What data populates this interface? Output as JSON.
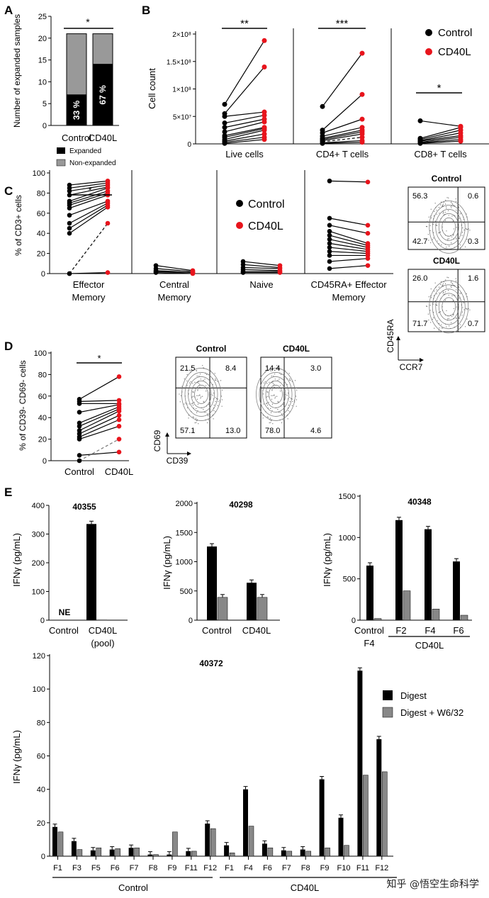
{
  "colors": {
    "control": "#000000",
    "cd40l": "#e8141c",
    "expanded": "#000000",
    "non_expanded": "#999999",
    "digest": "#000000",
    "digest_w632": "#888888"
  },
  "watermark": "知乎 @悟空生命科学",
  "panels": {
    "A": "A",
    "B": "B",
    "C": "C",
    "D": "D",
    "E": "E"
  },
  "chart_data": [
    {
      "id": "A",
      "type": "bar",
      "categories": [
        "Control",
        "CD40L"
      ],
      "series": [
        {
          "name": "Expanded",
          "values": [
            7,
            14
          ],
          "labels": [
            "33 %",
            "67 %"
          ]
        },
        {
          "name": "Non-expanded",
          "values": [
            14,
            7
          ]
        }
      ],
      "ylabel": "Number of expanded samples",
      "yticks": [
        0,
        5,
        10,
        15,
        20,
        25
      ],
      "ylim": [
        0,
        25
      ],
      "significance": "*"
    },
    {
      "id": "B",
      "type": "scatter",
      "groups": [
        "Live cells",
        "CD4+ T cells",
        "CD8+ T cells"
      ],
      "ylabel": "Cell count",
      "ytick_labels": [
        "0",
        "5×10⁷",
        "1×10⁸",
        "1.5×10⁸",
        "2×10⁸"
      ],
      "ylim": [
        0,
        200000000
      ],
      "legend": [
        "Control",
        "CD40L"
      ],
      "significance": [
        "**",
        "***",
        "*"
      ],
      "pairs": [
        [
          [
            72000000,
            188000000
          ],
          [
            55000000,
            140000000
          ],
          [
            50000000,
            58000000
          ],
          [
            38000000,
            52000000
          ],
          [
            30000000,
            45000000
          ],
          [
            22000000,
            40000000
          ],
          [
            15000000,
            30000000
          ],
          [
            12000000,
            28000000
          ],
          [
            8000000,
            25000000
          ],
          [
            5000000,
            18000000
          ],
          [
            3000000,
            12000000
          ],
          [
            1000000,
            8000000
          ]
        ],
        [
          [
            68000000,
            165000000
          ],
          [
            25000000,
            90000000
          ],
          [
            20000000,
            45000000
          ],
          [
            14000000,
            30000000
          ],
          [
            10000000,
            25000000
          ],
          [
            8000000,
            22000000
          ],
          [
            6000000,
            18000000
          ],
          [
            4000000,
            12000000
          ],
          [
            2000000,
            6000000
          ],
          [
            1000000,
            3000000
          ]
        ],
        [
          [
            42000000,
            32000000
          ],
          [
            10000000,
            30000000
          ],
          [
            8000000,
            25000000
          ],
          [
            6000000,
            20000000
          ],
          [
            5000000,
            15000000
          ],
          [
            3000000,
            12000000
          ],
          [
            2000000,
            8000000
          ],
          [
            1000000,
            5000000
          ]
        ]
      ]
    },
    {
      "id": "C",
      "type": "scatter",
      "groups": [
        "Effector Memory",
        "Central Memory",
        "Naive",
        "CD45RA+ Effector Memory"
      ],
      "ylabel": "% of CD3+ cells",
      "yticks": [
        0,
        20,
        40,
        60,
        80,
        100
      ],
      "ylim": [
        0,
        100
      ],
      "legend": [
        "Control",
        "CD40L"
      ],
      "significance": [
        "*",
        "",
        "",
        ""
      ],
      "pairs": [
        [
          [
            88,
            92
          ],
          [
            85,
            90
          ],
          [
            82,
            88
          ],
          [
            78,
            86
          ],
          [
            72,
            85
          ],
          [
            70,
            82
          ],
          [
            68,
            80
          ],
          [
            65,
            78
          ],
          [
            58,
            72
          ],
          [
            50,
            70
          ],
          [
            45,
            68
          ],
          [
            40,
            66
          ],
          [
            0,
            50
          ],
          [
            0,
            1
          ]
        ],
        [
          [
            8,
            3
          ],
          [
            5,
            2
          ],
          [
            3,
            1
          ],
          [
            2,
            1
          ],
          [
            1,
            0
          ]
        ],
        [
          [
            12,
            8
          ],
          [
            9,
            6
          ],
          [
            6,
            5
          ],
          [
            4,
            3
          ],
          [
            2,
            2
          ],
          [
            1,
            1
          ]
        ],
        [
          [
            92,
            91
          ],
          [
            55,
            48
          ],
          [
            48,
            40
          ],
          [
            42,
            30
          ],
          [
            38,
            28
          ],
          [
            34,
            26
          ],
          [
            30,
            24
          ],
          [
            26,
            22
          ],
          [
            22,
            20
          ],
          [
            18,
            18
          ],
          [
            12,
            15
          ],
          [
            5,
            8
          ]
        ]
      ]
    },
    {
      "id": "D",
      "type": "scatter",
      "categories": [
        "Control",
        "CD40L"
      ],
      "ylabel": "% of CD39- CD69- cells",
      "yticks": [
        0,
        20,
        40,
        60,
        80,
        100
      ],
      "ylim": [
        0,
        100
      ],
      "significance": "*",
      "pairs": [
        [
          57,
          78
        ],
        [
          55,
          56
        ],
        [
          53,
          53
        ],
        [
          45,
          52
        ],
        [
          35,
          50
        ],
        [
          32,
          48
        ],
        [
          28,
          46
        ],
        [
          25,
          42
        ],
        [
          22,
          38
        ],
        [
          20,
          32
        ],
        [
          5,
          8
        ],
        [
          0,
          20
        ]
      ]
    },
    {
      "id": "E1",
      "type": "bar",
      "title": "40355",
      "categories": [
        "Control",
        "CD40L (pool)"
      ],
      "series": [
        {
          "name": "Digest",
          "values": [
            0,
            335
          ]
        },
        {
          "name": "Digest + W6/32",
          "values": [
            0,
            3
          ]
        }
      ],
      "ylabel": "IFNγ (pg/mL)",
      "yticks": [
        0,
        100,
        200,
        300,
        400
      ],
      "ylim": [
        0,
        400
      ],
      "annotation": "NE"
    },
    {
      "id": "E2",
      "type": "bar",
      "title": "40298",
      "categories": [
        "Control",
        "CD40L"
      ],
      "series": [
        {
          "name": "Digest",
          "values": [
            1260,
            640
          ]
        },
        {
          "name": "Digest + W6/32",
          "values": [
            390,
            390
          ]
        }
      ],
      "ylabel": "IFNγ (pg/mL)",
      "yticks": [
        0,
        500,
        1000,
        1500,
        2000
      ],
      "ylim": [
        0,
        2000
      ]
    },
    {
      "id": "E3",
      "type": "bar",
      "title": "40348",
      "categories": [
        "Control F4",
        "F2",
        "F4",
        "F6"
      ],
      "group_label": "CD40L",
      "series": [
        {
          "name": "Digest",
          "values": [
            660,
            1210,
            1100,
            710
          ]
        },
        {
          "name": "Digest + W6/32",
          "values": [
            20,
            355,
            135,
            60
          ]
        }
      ],
      "ylabel": "IFNγ (pg/mL)",
      "yticks": [
        0,
        500,
        1000,
        1500
      ],
      "ylim": [
        0,
        1500
      ]
    },
    {
      "id": "E4",
      "type": "bar",
      "title": "40372",
      "categories": [
        "F1",
        "F3",
        "F5",
        "F6",
        "F7",
        "F8",
        "F9",
        "F11",
        "F12",
        "F1",
        "F4",
        "F6",
        "F7",
        "F8",
        "F9",
        "F10",
        "F11",
        "F12"
      ],
      "groups": [
        {
          "label": "Control",
          "count": 9
        },
        {
          "label": "CD40L",
          "count": 9
        }
      ],
      "series": [
        {
          "name": "Digest",
          "values": [
            17.5,
            9,
            3.5,
            4,
            5,
            1,
            1,
            3,
            19.5,
            6.5,
            40,
            7.5,
            3.5,
            4,
            46,
            23,
            111,
            70
          ]
        },
        {
          "name": "Digest + W6/32",
          "values": [
            14.5,
            4,
            5,
            4.5,
            5,
            1,
            14.5,
            3,
            16.5,
            2,
            18,
            5,
            3,
            3,
            5,
            6.5,
            48.5,
            50.5
          ]
        }
      ],
      "ylabel": "IFNγ (pg/mL)",
      "yticks": [
        0,
        20,
        40,
        60,
        80,
        100,
        120
      ],
      "ylim": [
        0,
        120
      ],
      "legend": [
        "Digest",
        "Digest + W6/32"
      ]
    }
  ],
  "flow": {
    "C_control": {
      "title": "Control",
      "q": [
        "56.3",
        "0.6",
        "42.7",
        "0.3"
      ]
    },
    "C_cd40l": {
      "title": "CD40L",
      "q": [
        "26.0",
        "1.6",
        "71.7",
        "0.7"
      ],
      "xaxis": "CCR7",
      "yaxis": "CD45RA"
    },
    "D_control": {
      "title": "Control",
      "q": [
        "21.5",
        "8.4",
        "57.1",
        "13.0"
      ],
      "xaxis": "CD39",
      "yaxis": "CD69"
    },
    "D_cd40l": {
      "title": "CD40L",
      "q": [
        "14.4",
        "3.0",
        "78.0",
        "4.6"
      ]
    }
  }
}
